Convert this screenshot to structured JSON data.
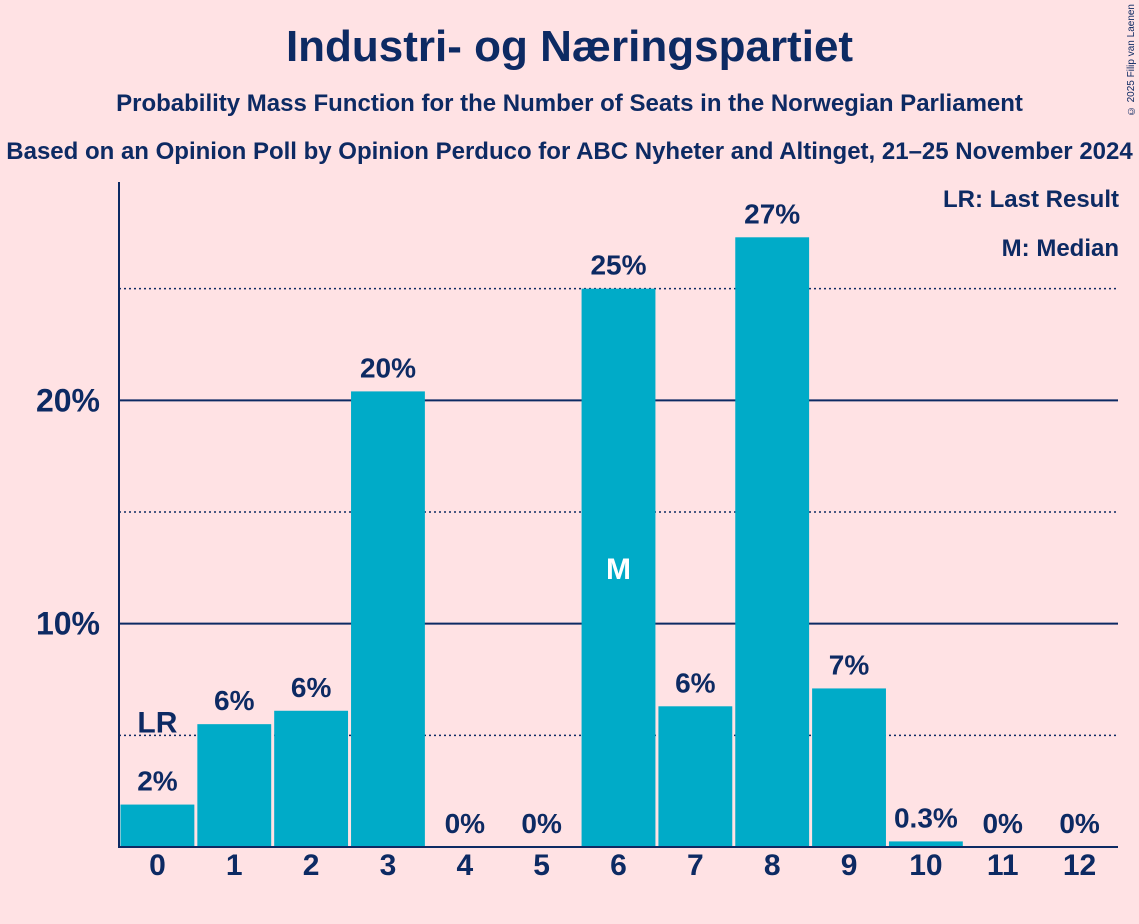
{
  "copyright": "© 2025 Filip van Laenen",
  "legend": {
    "last_result": "LR: Last Result",
    "median": "M: Median"
  },
  "colors": {
    "bar": "#00abc8",
    "text": "#0d2a63",
    "background": "#ffe2e4"
  },
  "chart_data": {
    "type": "bar",
    "title": "Industri- og Næringspartiet",
    "subtitle": "Probability Mass Function for the Number of Seats in the Norwegian Parliament",
    "source": "Based on an Opinion Poll by Opinion Perduco for ABC Nyheter and Altinget, 21–25 November 2024",
    "categories": [
      "0",
      "1",
      "2",
      "3",
      "4",
      "5",
      "6",
      "7",
      "8",
      "9",
      "10",
      "11",
      "12"
    ],
    "values": [
      1.9,
      5.5,
      6.1,
      20.4,
      0,
      0,
      25.0,
      6.3,
      27.3,
      7.1,
      0.25,
      0,
      0
    ],
    "value_labels": [
      "2%",
      "6%",
      "6%",
      "20%",
      "0%",
      "0%",
      "25%",
      "6%",
      "27%",
      "7%",
      "0.3%",
      "0%",
      "0%"
    ],
    "ylim": [
      0,
      30
    ],
    "yticks": [
      {
        "value": 10,
        "label": "10%"
      },
      {
        "value": 20,
        "label": "20%"
      }
    ],
    "minor_gridlines": [
      5,
      15,
      25
    ],
    "last_result": {
      "category": "0",
      "label": "LR"
    },
    "median": {
      "category": "6",
      "label": "M"
    },
    "grid": true,
    "legend_position": "top-right"
  }
}
